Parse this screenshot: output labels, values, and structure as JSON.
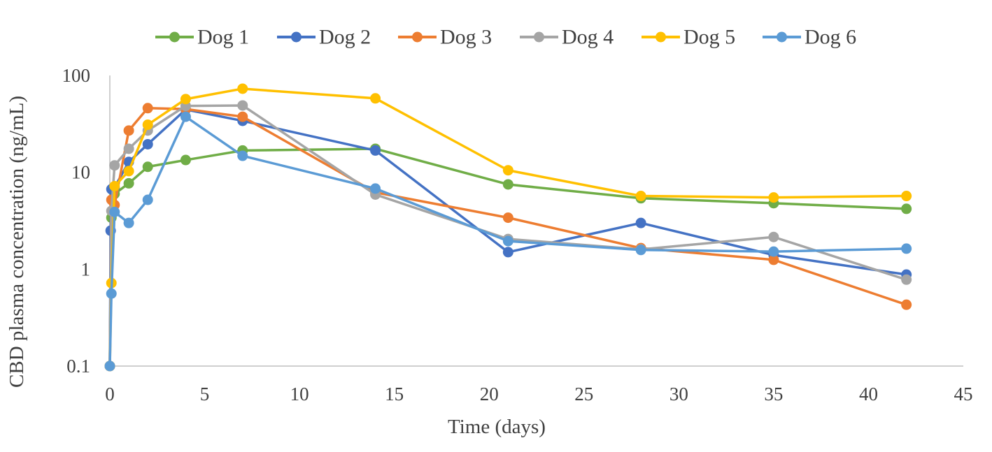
{
  "chart_data": {
    "type": "line",
    "title": "",
    "xlabel": "Time (days)",
    "ylabel": "CBD plasma concentration (ng/mL)",
    "yscale": "log",
    "xlim": [
      0,
      45
    ],
    "ylim": [
      0.1,
      100
    ],
    "x_ticks": [
      0,
      5,
      10,
      15,
      20,
      25,
      30,
      35,
      40,
      45
    ],
    "x_tick_labels": [
      "0",
      "5",
      "10",
      "15",
      "20",
      "25",
      "30",
      "35",
      "40",
      "45"
    ],
    "y_ticks": [
      0.1,
      1,
      10,
      100
    ],
    "y_tick_labels": [
      "0.1",
      "1",
      "10",
      "100"
    ],
    "legend_position": "top-center",
    "series": [
      {
        "name": "Dog 1",
        "color": "#70AD47",
        "points": [
          [
            0,
            0.1
          ],
          [
            0.083,
            3.4
          ],
          [
            0.25,
            6.0
          ],
          [
            1,
            7.7
          ],
          [
            2,
            11.4
          ],
          [
            4,
            13.4
          ],
          [
            7,
            16.8
          ],
          [
            14,
            17.5
          ],
          [
            21,
            7.5
          ],
          [
            28,
            5.4
          ],
          [
            35,
            4.8
          ],
          [
            42,
            4.2
          ]
        ]
      },
      {
        "name": "Dog 2",
        "color": "#4472C4",
        "points": [
          [
            0,
            0.1
          ],
          [
            0.042,
            2.5
          ],
          [
            0.083,
            6.7
          ],
          [
            0.25,
            7.0
          ],
          [
            1,
            12.8
          ],
          [
            2,
            19.5
          ],
          [
            4,
            44.5
          ],
          [
            7,
            34.0
          ],
          [
            14,
            16.8
          ],
          [
            21,
            1.5
          ],
          [
            28,
            3.0
          ],
          [
            35,
            1.4
          ],
          [
            42,
            0.88
          ]
        ]
      },
      {
        "name": "Dog 3",
        "color": "#ED7D31",
        "points": [
          [
            0,
            0.1
          ],
          [
            0.083,
            5.2
          ],
          [
            0.25,
            4.6
          ],
          [
            1,
            27.0
          ],
          [
            2,
            46.0
          ],
          [
            4,
            45.0
          ],
          [
            7,
            37.5
          ],
          [
            14,
            6.2
          ],
          [
            21,
            3.4
          ],
          [
            28,
            1.65
          ],
          [
            35,
            1.25
          ],
          [
            42,
            0.43
          ]
        ]
      },
      {
        "name": "Dog 4",
        "color": "#A5A5A5",
        "points": [
          [
            0,
            0.1
          ],
          [
            0.083,
            4.0
          ],
          [
            0.25,
            11.8
          ],
          [
            1,
            17.5
          ],
          [
            2,
            27.0
          ],
          [
            4,
            48.5
          ],
          [
            7,
            49.0
          ],
          [
            14,
            5.9
          ],
          [
            21,
            2.05
          ],
          [
            28,
            1.6
          ],
          [
            35,
            2.15
          ],
          [
            42,
            0.78
          ]
        ]
      },
      {
        "name": "Dog 5",
        "color": "#FFC000",
        "points": [
          [
            0,
            0.1
          ],
          [
            0.083,
            0.72
          ],
          [
            0.25,
            7.2
          ],
          [
            1,
            10.3
          ],
          [
            2,
            31.0
          ],
          [
            4,
            57.0
          ],
          [
            7,
            73.0
          ],
          [
            14,
            58.0
          ],
          [
            21,
            10.5
          ],
          [
            28,
            5.7
          ],
          [
            35,
            5.5
          ],
          [
            42,
            5.7
          ]
        ]
      },
      {
        "name": "Dog 6",
        "color": "#5B9BD5",
        "points": [
          [
            0,
            0.1
          ],
          [
            0.083,
            0.56
          ],
          [
            0.25,
            3.9
          ],
          [
            1,
            3.0
          ],
          [
            2,
            5.2
          ],
          [
            4,
            37.5
          ],
          [
            7,
            14.8
          ],
          [
            14,
            6.8
          ],
          [
            21,
            1.95
          ],
          [
            28,
            1.58
          ],
          [
            35,
            1.52
          ],
          [
            42,
            1.63
          ]
        ]
      }
    ],
    "colors": {
      "axis": "#BFBFBF",
      "text": "#404040"
    }
  }
}
